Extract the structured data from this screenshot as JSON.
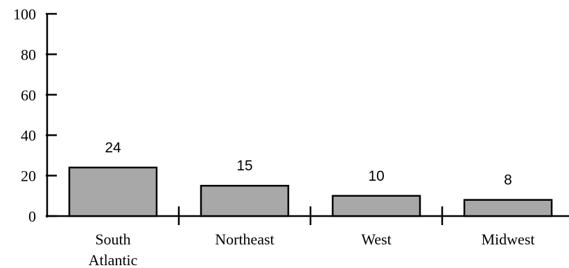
{
  "chart_data": {
    "type": "bar",
    "categories": [
      "South Atlantic",
      "Northeast",
      "West",
      "Midwest"
    ],
    "category_lines": [
      [
        "South",
        "Atlantic"
      ],
      [
        "Northeast"
      ],
      [
        "West"
      ],
      [
        "Midwest"
      ]
    ],
    "values": [
      24,
      15,
      10,
      8
    ],
    "data_labels": [
      "24",
      "15",
      "10",
      "8"
    ],
    "ylim": [
      0,
      100
    ],
    "yticks": [
      0,
      20,
      40,
      60,
      80,
      100
    ],
    "ytick_labels": [
      "0",
      "20",
      "40",
      "60",
      "80",
      "100"
    ],
    "grid": false,
    "legend": "none",
    "bar_color": "#a8a8a8",
    "bar_edge_color": "#000000"
  }
}
